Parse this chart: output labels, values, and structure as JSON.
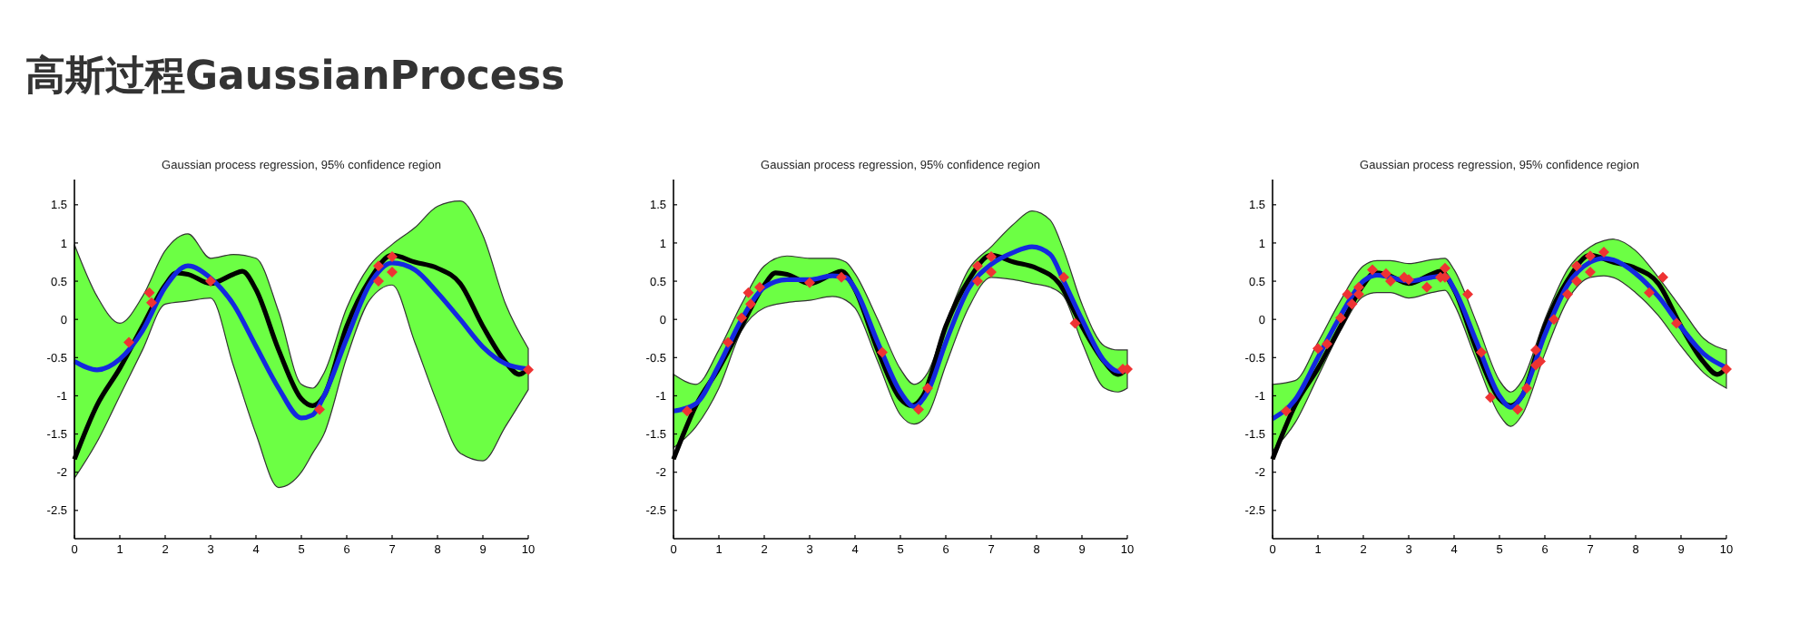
{
  "chart_data": [
    {
      "type": "other",
      "title": "高斯过程GaussianProcess"
    },
    {
      "type": "line",
      "title": "Gaussian process regression, 95% confidence region",
      "xlim": [
        0,
        10
      ],
      "ylim": [
        -2.87,
        1.83
      ],
      "xticks": [
        0,
        1,
        2,
        3,
        4,
        5,
        6,
        7,
        8,
        9,
        10
      ],
      "yticks": [
        -2.5,
        -2,
        -1.5,
        -1,
        -0.5,
        0,
        0.5,
        1,
        1.5
      ],
      "grid": false,
      "line_style": "solid",
      "series": [
        {
          "type": "line",
          "color": "#000000",
          "x": [
            0,
            0.5,
            1,
            1.5,
            2,
            2.25,
            2.5,
            3,
            3.5,
            3.7,
            4,
            4.5,
            5,
            5.25,
            5.5,
            6,
            6.5,
            7,
            7.5,
            8,
            8.5,
            9,
            9.5,
            9.8,
            10
          ],
          "values": [
            -1.83,
            -1.12,
            -0.64,
            -0.09,
            0.45,
            0.61,
            0.59,
            0.47,
            0.59,
            0.63,
            0.39,
            -0.4,
            -1.04,
            -1.13,
            -1.0,
            -0.09,
            0.51,
            0.84,
            0.75,
            0.67,
            0.47,
            -0.09,
            -0.56,
            -0.72,
            -0.64
          ]
        },
        {
          "type": "line",
          "color": "#1428e0",
          "x": [
            0,
            0.5,
            1,
            1.5,
            2,
            2.5,
            3,
            3.5,
            4,
            4.5,
            5,
            5.25,
            5.5,
            6,
            6.5,
            7,
            7.5,
            8,
            8.5,
            9,
            9.5,
            10
          ],
          "values": [
            -0.55,
            -0.66,
            -0.52,
            -0.15,
            0.42,
            0.7,
            0.54,
            0.2,
            -0.35,
            -0.9,
            -1.29,
            -1.25,
            -1.0,
            -0.25,
            0.45,
            0.74,
            0.65,
            0.35,
            0.0,
            -0.36,
            -0.58,
            -0.65
          ],
          "lower": [
            -2.08,
            -1.6,
            -1.0,
            -0.4,
            0.2,
            0.24,
            0.28,
            -0.6,
            -1.5,
            -2.2,
            -2.0,
            -1.75,
            -1.5,
            -0.5,
            0.25,
            0.45,
            -0.3,
            -1.1,
            -1.75,
            -1.85,
            -1.4,
            -0.92
          ],
          "upper": [
            0.98,
            0.3,
            -0.05,
            0.3,
            0.9,
            1.12,
            0.8,
            0.85,
            0.8,
            0.1,
            -0.85,
            -0.9,
            -0.7,
            0.15,
            0.7,
            0.98,
            1.2,
            1.48,
            1.55,
            1.1,
            0.2,
            -0.38
          ]
        },
        {
          "type": "scatter",
          "color": "#ee3333",
          "marker": "diamond",
          "x": [
            1.2,
            1.65,
            1.7,
            3.0,
            5.4,
            6.7,
            6.7,
            7.0,
            7.0,
            10
          ],
          "values": [
            -0.3,
            0.35,
            0.22,
            0.5,
            -1.18,
            0.7,
            0.5,
            0.82,
            0.62,
            -0.66
          ]
        }
      ]
    },
    {
      "type": "line",
      "title": "Gaussian process regression, 95% confidence region",
      "xlim": [
        0,
        10
      ],
      "ylim": [
        -2.87,
        1.83
      ],
      "xticks": [
        0,
        1,
        2,
        3,
        4,
        5,
        6,
        7,
        8,
        9,
        10
      ],
      "yticks": [
        -2.5,
        -2,
        -1.5,
        -1,
        -0.5,
        0,
        0.5,
        1,
        1.5
      ],
      "grid": false,
      "line_style": "solid",
      "series": [
        {
          "type": "line",
          "color": "#000000",
          "x": [
            0,
            0.5,
            1,
            1.5,
            2,
            2.25,
            2.5,
            3,
            3.5,
            3.7,
            4,
            4.5,
            5,
            5.25,
            5.5,
            6,
            6.5,
            7,
            7.5,
            8,
            8.5,
            9,
            9.5,
            9.8,
            10
          ],
          "values": [
            -1.83,
            -1.12,
            -0.64,
            -0.09,
            0.45,
            0.61,
            0.59,
            0.47,
            0.59,
            0.63,
            0.39,
            -0.4,
            -1.04,
            -1.13,
            -1.0,
            -0.09,
            0.51,
            0.84,
            0.75,
            0.67,
            0.47,
            -0.09,
            -0.56,
            -0.72,
            -0.64
          ]
        },
        {
          "type": "line",
          "color": "#1428e0",
          "x": [
            0,
            0.5,
            1,
            1.5,
            2,
            2.5,
            3,
            3.5,
            3.8,
            4,
            4.5,
            5,
            5.3,
            5.6,
            6,
            6.5,
            7,
            7.5,
            7.9,
            8.3,
            8.6,
            9,
            9.5,
            9.8,
            10
          ],
          "values": [
            -1.2,
            -1.1,
            -0.6,
            0.0,
            0.42,
            0.52,
            0.52,
            0.57,
            0.55,
            0.4,
            -0.3,
            -0.95,
            -1.14,
            -0.95,
            -0.3,
            0.4,
            0.72,
            0.88,
            0.95,
            0.85,
            0.5,
            0.0,
            -0.55,
            -0.68,
            -0.65
          ],
          "lower": [
            -1.68,
            -1.4,
            -0.9,
            -0.15,
            0.15,
            0.22,
            0.25,
            0.3,
            0.25,
            0.15,
            -0.55,
            -1.25,
            -1.37,
            -1.25,
            -0.6,
            0.15,
            0.55,
            0.52,
            0.47,
            0.42,
            0.3,
            -0.3,
            -0.9,
            -0.95,
            -0.9
          ],
          "upper": [
            -0.72,
            -0.85,
            -0.4,
            0.2,
            0.7,
            0.83,
            0.8,
            0.8,
            0.75,
            0.6,
            0.0,
            -0.65,
            -0.85,
            -0.7,
            -0.05,
            0.65,
            0.95,
            1.25,
            1.42,
            1.3,
            0.9,
            0.2,
            -0.35,
            -0.4,
            -0.4
          ]
        },
        {
          "type": "scatter",
          "color": "#ee3333",
          "marker": "diamond",
          "x": [
            0.3,
            1.2,
            1.5,
            1.65,
            1.7,
            1.9,
            3.0,
            3.7,
            4.6,
            5.4,
            5.6,
            6.7,
            6.7,
            7.0,
            7.0,
            8.6,
            8.85,
            9.9,
            10
          ],
          "values": [
            -1.2,
            -0.3,
            0.02,
            0.35,
            0.2,
            0.42,
            0.48,
            0.55,
            -0.43,
            -1.18,
            -0.9,
            0.7,
            0.5,
            0.82,
            0.62,
            0.55,
            -0.05,
            -0.65,
            -0.65
          ]
        }
      ]
    },
    {
      "type": "line",
      "title": "Gaussian process regression, 95% confidence region",
      "xlim": [
        0,
        10
      ],
      "ylim": [
        -2.87,
        1.83
      ],
      "xticks": [
        0,
        1,
        2,
        3,
        4,
        5,
        6,
        7,
        8,
        9,
        10
      ],
      "yticks": [
        -2.5,
        -2,
        -1.5,
        -1,
        -0.5,
        0,
        0.5,
        1,
        1.5
      ],
      "grid": false,
      "line_style": "solid",
      "series": [
        {
          "type": "line",
          "color": "#000000",
          "x": [
            0,
            0.5,
            1,
            1.5,
            2,
            2.25,
            2.5,
            3,
            3.5,
            3.7,
            4,
            4.5,
            5,
            5.25,
            5.5,
            6,
            6.5,
            7,
            7.5,
            8,
            8.5,
            9,
            9.5,
            9.8,
            10
          ],
          "values": [
            -1.83,
            -1.12,
            -0.64,
            -0.09,
            0.45,
            0.61,
            0.59,
            0.47,
            0.59,
            0.63,
            0.39,
            -0.4,
            -1.04,
            -1.13,
            -1.0,
            -0.09,
            0.51,
            0.84,
            0.75,
            0.67,
            0.47,
            -0.09,
            -0.56,
            -0.72,
            -0.64
          ]
        },
        {
          "type": "line",
          "color": "#1428e0",
          "x": [
            0,
            0.5,
            1,
            1.5,
            2,
            2.3,
            2.6,
            3,
            3.5,
            3.8,
            4,
            4.5,
            5,
            5.25,
            5.5,
            6,
            6.5,
            7,
            7.3,
            7.5,
            8,
            8.5,
            9,
            9.5,
            10
          ],
          "values": [
            -1.3,
            -1.05,
            -0.5,
            0.05,
            0.5,
            0.58,
            0.55,
            0.5,
            0.55,
            0.57,
            0.4,
            -0.3,
            -1.0,
            -1.15,
            -1.0,
            -0.2,
            0.45,
            0.75,
            0.8,
            0.78,
            0.6,
            0.3,
            -0.1,
            -0.45,
            -0.63
          ],
          "lower": [
            -1.72,
            -1.35,
            -0.75,
            -0.15,
            0.3,
            0.35,
            0.35,
            0.28,
            0.35,
            0.38,
            0.2,
            -0.55,
            -1.25,
            -1.4,
            -1.25,
            -0.45,
            0.25,
            0.55,
            0.57,
            0.55,
            0.35,
            0.05,
            -0.35,
            -0.7,
            -0.9
          ],
          "upper": [
            -0.85,
            -0.8,
            -0.3,
            0.25,
            0.7,
            0.77,
            0.77,
            0.73,
            0.78,
            0.8,
            0.65,
            -0.05,
            -0.8,
            -0.95,
            -0.8,
            0.0,
            0.65,
            0.95,
            1.03,
            1.05,
            0.9,
            0.55,
            0.15,
            -0.25,
            -0.4
          ]
        },
        {
          "type": "scatter",
          "color": "#ee3333",
          "marker": "diamond",
          "x": [
            0.3,
            1.0,
            1.2,
            1.5,
            1.65,
            1.75,
            1.9,
            1.9,
            2.2,
            2.5,
            2.6,
            2.9,
            3.0,
            3.4,
            3.7,
            3.8,
            3.8,
            4.3,
            4.6,
            4.8,
            5.4,
            5.6,
            5.8,
            5.8,
            5.9,
            6.2,
            6.5,
            6.7,
            6.7,
            7.0,
            7.0,
            7.3,
            8.3,
            8.6,
            8.9,
            10
          ],
          "values": [
            -1.2,
            -0.38,
            -0.32,
            0.02,
            0.33,
            0.2,
            0.42,
            0.33,
            0.65,
            0.6,
            0.5,
            0.55,
            0.52,
            0.42,
            0.55,
            0.67,
            0.55,
            0.33,
            -0.43,
            -1.02,
            -1.18,
            -0.9,
            -0.4,
            -0.6,
            -0.55,
            0.0,
            0.33,
            0.7,
            0.5,
            0.83,
            0.62,
            0.88,
            0.35,
            0.55,
            -0.05,
            -0.65
          ]
        }
      ]
    }
  ]
}
